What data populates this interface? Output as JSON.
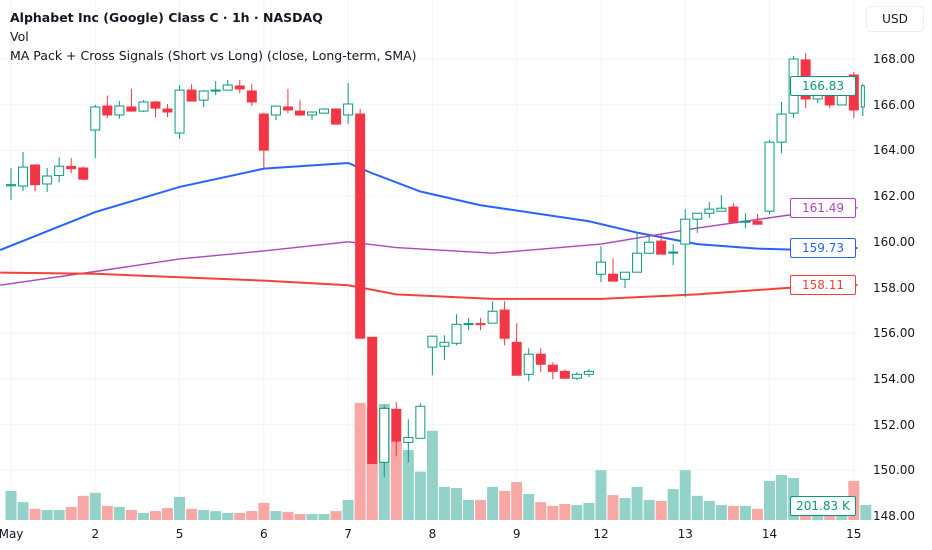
{
  "legend": {
    "title": "Alphabet Inc (Google) Class C · 1h · NASDAQ",
    "vol": "Vol",
    "indicator": "MA Pack + Cross Signals (Short vs Long) (close, Long-term, SMA)"
  },
  "currency_button": "USD",
  "colors": {
    "up": "#089981",
    "down": "#f23645",
    "vol_up": "#92d2c8",
    "vol_down": "#f7a8a6",
    "ma_short": "#2962ff",
    "ma_mid": "#ab47bc",
    "ma_long": "#f44336",
    "grid": "#f0f3fa"
  },
  "chart_data": {
    "type": "candlestick",
    "title": "Alphabet Inc (Google) Class C · 1h · NASDAQ",
    "ylim": [
      147.9,
      168.2
    ],
    "y_ticks": [
      "168.00",
      "166.00",
      "164.00",
      "162.00",
      "160.00",
      "158.00",
      "156.00",
      "154.00",
      "152.00",
      "150.00",
      "148.00"
    ],
    "x_ticks": [
      {
        "label": "May",
        "index": 0
      },
      {
        "label": "2",
        "index": 7
      },
      {
        "label": "5",
        "index": 14
      },
      {
        "label": "6",
        "index": 21
      },
      {
        "label": "7",
        "index": 28
      },
      {
        "label": "8",
        "index": 35
      },
      {
        "label": "9",
        "index": 42
      },
      {
        "label": "12",
        "index": 49
      },
      {
        "label": "13",
        "index": 56
      },
      {
        "label": "14",
        "index": 63
      },
      {
        "label": "15",
        "index": 70
      }
    ],
    "candles": [
      [
        162.45,
        163.23,
        161.83,
        162.5
      ],
      [
        162.44,
        163.93,
        162.22,
        163.27
      ],
      [
        163.36,
        163.4,
        162.2,
        162.5
      ],
      [
        162.53,
        163.23,
        162.18,
        162.88
      ],
      [
        162.9,
        163.7,
        162.6,
        163.31
      ],
      [
        163.3,
        163.66,
        163.0,
        163.2
      ],
      [
        163.23,
        163.3,
        162.7,
        162.74
      ],
      [
        164.89,
        166.0,
        163.66,
        165.9
      ],
      [
        165.94,
        166.4,
        165.42,
        165.55
      ],
      [
        165.55,
        166.16,
        165.38,
        165.94
      ],
      [
        165.9,
        166.69,
        165.72,
        165.72
      ],
      [
        165.72,
        166.2,
        165.68,
        166.12
      ],
      [
        166.12,
        166.16,
        165.46,
        165.85
      ],
      [
        165.81,
        166.03,
        165.46,
        165.68
      ],
      [
        164.76,
        166.86,
        164.5,
        166.64
      ],
      [
        166.64,
        166.9,
        166.16,
        166.16
      ],
      [
        166.2,
        166.64,
        165.9,
        166.6
      ],
      [
        166.6,
        167.04,
        166.42,
        166.64
      ],
      [
        166.64,
        167.08,
        166.64,
        166.86
      ],
      [
        166.82,
        167.08,
        166.5,
        166.69
      ],
      [
        166.6,
        166.9,
        165.94,
        166.12
      ],
      [
        165.59,
        165.65,
        163.23,
        164.01
      ],
      [
        165.55,
        165.94,
        165.33,
        165.94
      ],
      [
        165.9,
        166.69,
        165.63,
        165.77
      ],
      [
        165.72,
        166.2,
        165.5,
        165.55
      ],
      [
        165.55,
        165.68,
        165.33,
        165.68
      ],
      [
        165.63,
        165.85,
        165.6,
        165.81
      ],
      [
        165.81,
        165.85,
        165.15,
        165.15
      ],
      [
        165.55,
        166.95,
        165.15,
        166.03
      ],
      [
        165.59,
        165.81,
        155.78,
        155.78
      ],
      [
        155.82,
        155.82,
        150.3,
        150.3
      ],
      [
        150.35,
        152.85,
        149.69,
        152.71
      ],
      [
        152.67,
        152.98,
        150.61,
        151.27
      ],
      [
        151.22,
        152.23,
        150.35,
        151.44
      ],
      [
        151.4,
        152.93,
        151.4,
        152.8
      ],
      [
        155.39,
        155.87,
        154.16,
        155.87
      ],
      [
        155.43,
        155.91,
        154.82,
        155.6
      ],
      [
        155.56,
        156.83,
        155.47,
        156.39
      ],
      [
        156.39,
        156.66,
        156.13,
        156.42
      ],
      [
        156.42,
        156.66,
        156.13,
        156.4
      ],
      [
        156.44,
        157.4,
        156.44,
        156.96
      ],
      [
        157.01,
        157.4,
        155.47,
        155.78
      ],
      [
        155.6,
        156.44,
        154.16,
        154.16
      ],
      [
        154.2,
        155.34,
        153.9,
        155.08
      ],
      [
        155.08,
        155.34,
        154.29,
        154.64
      ],
      [
        154.6,
        154.73,
        153.98,
        154.33
      ],
      [
        154.33,
        154.4,
        154.0,
        154.03
      ],
      [
        154.03,
        154.29,
        153.95,
        154.2
      ],
      [
        154.2,
        154.42,
        154.07,
        154.33
      ],
      [
        158.58,
        159.81,
        158.23,
        159.11
      ],
      [
        158.58,
        159.28,
        158.28,
        158.28
      ],
      [
        158.36,
        158.67,
        157.97,
        158.67
      ],
      [
        158.67,
        160.42,
        158.67,
        159.5
      ],
      [
        159.5,
        160.25,
        159.5,
        159.98
      ],
      [
        160.03,
        160.34,
        159.46,
        159.46
      ],
      [
        159.55,
        159.9,
        158.98,
        159.55
      ],
      [
        159.9,
        161.43,
        157.58,
        160.99
      ],
      [
        160.99,
        161.25,
        160.38,
        161.25
      ],
      [
        161.25,
        161.74,
        161.04,
        161.43
      ],
      [
        161.34,
        162.04,
        161.34,
        161.47
      ],
      [
        161.52,
        161.69,
        160.86,
        160.86
      ],
      [
        160.9,
        161.25,
        160.6,
        160.9
      ],
      [
        160.9,
        161.21,
        160.73,
        160.77
      ],
      [
        161.34,
        164.45,
        161.21,
        164.36
      ],
      [
        164.36,
        166.12,
        163.88,
        165.59
      ],
      [
        165.63,
        168.13,
        165.42,
        168.0
      ],
      [
        167.96,
        168.26,
        165.85,
        166.25
      ],
      [
        166.25,
        167.04,
        166.07,
        166.6
      ],
      [
        166.6,
        167.04,
        165.85,
        165.99
      ],
      [
        165.99,
        166.82,
        165.99,
        166.73
      ],
      [
        167.3,
        167.43,
        165.42,
        165.77
      ],
      [
        165.9,
        166.9,
        165.5,
        166.83
      ]
    ],
    "volume_k": [
      390,
      240,
      150,
      135,
      135,
      175,
      325,
      365,
      190,
      175,
      135,
      95,
      120,
      160,
      310,
      150,
      135,
      120,
      95,
      95,
      120,
      230,
      120,
      110,
      80,
      80,
      80,
      120,
      270,
      1575,
      1510,
      1560,
      1050,
      940,
      650,
      1200,
      445,
      430,
      270,
      270,
      445,
      390,
      510,
      350,
      240,
      190,
      215,
      200,
      230,
      670,
      335,
      295,
      445,
      270,
      255,
      415,
      670,
      325,
      255,
      200,
      190,
      190,
      150,
      525,
      605,
      565,
      255,
      200,
      230,
      285,
      525,
      201.83
    ],
    "volume_last_label": "201.83 K",
    "series": [
      {
        "name": "MA short",
        "price_label": "159.73",
        "points": [
          [
            -0.9,
            159.64
          ],
          [
            7,
            161.3
          ],
          [
            14,
            162.4
          ],
          [
            21,
            163.2
          ],
          [
            28,
            163.45
          ],
          [
            30,
            163.0
          ],
          [
            34,
            162.2
          ],
          [
            39,
            161.6
          ],
          [
            48,
            160.9
          ],
          [
            52,
            160.4
          ],
          [
            57,
            159.9
          ],
          [
            62,
            159.7
          ],
          [
            65,
            159.66
          ],
          [
            70.3,
            159.73
          ]
        ]
      },
      {
        "name": "MA mid",
        "price_label": "161.49",
        "points": [
          [
            -0.9,
            158.1
          ],
          [
            7,
            158.7
          ],
          [
            14,
            159.25
          ],
          [
            21,
            159.6
          ],
          [
            28,
            160.0
          ],
          [
            32,
            159.75
          ],
          [
            40,
            159.5
          ],
          [
            49,
            159.9
          ],
          [
            57,
            160.6
          ],
          [
            65,
            161.2
          ],
          [
            70.3,
            161.49
          ]
        ]
      },
      {
        "name": "MA long",
        "price_label": "158.11",
        "points": [
          [
            -0.9,
            158.65
          ],
          [
            7,
            158.6
          ],
          [
            14,
            158.45
          ],
          [
            21,
            158.3
          ],
          [
            28,
            158.1
          ],
          [
            32,
            157.7
          ],
          [
            40,
            157.5
          ],
          [
            49,
            157.5
          ],
          [
            57,
            157.7
          ],
          [
            65,
            158.0
          ],
          [
            70.3,
            158.11
          ]
        ]
      }
    ],
    "last_price_label": "166.83"
  }
}
